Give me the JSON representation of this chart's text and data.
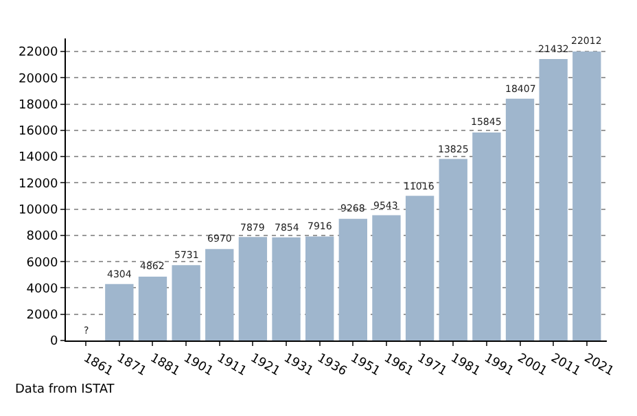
{
  "chart_data": {
    "type": "bar",
    "categories": [
      "1861",
      "1871",
      "1881",
      "1901",
      "1911",
      "1921",
      "1931",
      "1936",
      "1951",
      "1961",
      "1971",
      "1981",
      "1991",
      "2001",
      "2011",
      "2021"
    ],
    "values": [
      null,
      4304,
      4862,
      5731,
      6970,
      7879,
      7854,
      7916,
      9268,
      9543,
      11016,
      13825,
      15845,
      18407,
      21432,
      22012
    ],
    "value_labels": [
      "?",
      "4304",
      "4862",
      "5731",
      "6970",
      "7879",
      "7854",
      "7916",
      "9268",
      "9543",
      "11016",
      "13825",
      "15845",
      "18407",
      "21432",
      "22012"
    ],
    "color": "#9fb6cd",
    "ylim": [
      0,
      23000
    ],
    "yticks": [
      0,
      2000,
      4000,
      6000,
      8000,
      10000,
      12000,
      14000,
      16000,
      18000,
      20000,
      22000
    ],
    "grid": "y",
    "annotations": [
      "Data from ISTAT"
    ]
  }
}
